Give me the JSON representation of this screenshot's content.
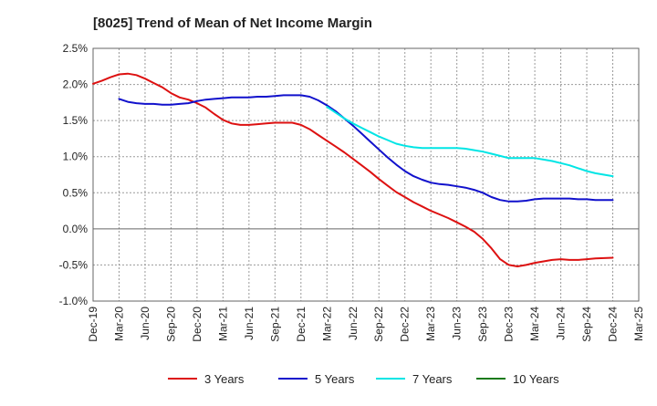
{
  "chart_data": {
    "type": "line",
    "title": "[8025]  Trend of Mean of Net Income Margin",
    "xlabel": "",
    "ylabel": "",
    "x": [
      "Dec-19",
      "Mar-20",
      "Jun-20",
      "Sep-20",
      "Dec-20",
      "Mar-21",
      "Jun-21",
      "Sep-21",
      "Dec-21",
      "Mar-22",
      "Jun-22",
      "Sep-22",
      "Dec-22",
      "Mar-23",
      "Jun-23",
      "Sep-23",
      "Dec-23",
      "Mar-24",
      "Jun-24",
      "Sep-24",
      "Dec-24",
      "Mar-25"
    ],
    "ylim": [
      -1.0,
      2.5
    ],
    "yticks": [
      -1.0,
      -0.5,
      0.0,
      0.5,
      1.0,
      1.5,
      2.0,
      2.5
    ],
    "ytick_labels": [
      "-1.0%",
      "-0.5%",
      "0.0%",
      "0.5%",
      "1.0%",
      "1.5%",
      "2.0%",
      "2.5%"
    ],
    "grid": true,
    "legend_position": "bottom",
    "series": [
      {
        "name": "3 Years",
        "color": "#dd1111",
        "points": [
          [
            "Dec-19",
            2.01
          ],
          [
            "Jan-20",
            2.05
          ],
          [
            "Feb-20",
            2.1
          ],
          [
            "Mar-20",
            2.14
          ],
          [
            "Apr-20",
            2.15
          ],
          [
            "May-20",
            2.13
          ],
          [
            "Jun-20",
            2.08
          ],
          [
            "Jul-20",
            2.02
          ],
          [
            "Aug-20",
            1.96
          ],
          [
            "Sep-20",
            1.88
          ],
          [
            "Oct-20",
            1.82
          ],
          [
            "Nov-20",
            1.79
          ],
          [
            "Dec-20",
            1.74
          ],
          [
            "Jan-21",
            1.68
          ],
          [
            "Feb-21",
            1.59
          ],
          [
            "Mar-21",
            1.51
          ],
          [
            "Apr-21",
            1.46
          ],
          [
            "May-21",
            1.44
          ],
          [
            "Jun-21",
            1.44
          ],
          [
            "Jul-21",
            1.45
          ],
          [
            "Aug-21",
            1.46
          ],
          [
            "Sep-21",
            1.47
          ],
          [
            "Oct-21",
            1.47
          ],
          [
            "Nov-21",
            1.47
          ],
          [
            "Dec-21",
            1.44
          ],
          [
            "Jan-22",
            1.38
          ],
          [
            "Feb-22",
            1.3
          ],
          [
            "Mar-22",
            1.22
          ],
          [
            "Apr-22",
            1.14
          ],
          [
            "May-22",
            1.06
          ],
          [
            "Jun-22",
            0.97
          ],
          [
            "Jul-22",
            0.88
          ],
          [
            "Aug-22",
            0.79
          ],
          [
            "Sep-22",
            0.69
          ],
          [
            "Oct-22",
            0.6
          ],
          [
            "Nov-22",
            0.51
          ],
          [
            "Dec-22",
            0.44
          ],
          [
            "Jan-23",
            0.37
          ],
          [
            "Feb-23",
            0.31
          ],
          [
            "Mar-23",
            0.25
          ],
          [
            "Apr-23",
            0.2
          ],
          [
            "May-23",
            0.15
          ],
          [
            "Jun-23",
            0.09
          ],
          [
            "Jul-23",
            0.03
          ],
          [
            "Aug-23",
            -0.04
          ],
          [
            "Sep-23",
            -0.14
          ],
          [
            "Oct-23",
            -0.27
          ],
          [
            "Nov-23",
            -0.42
          ],
          [
            "Dec-23",
            -0.5
          ],
          [
            "Jan-24",
            -0.52
          ],
          [
            "Feb-24",
            -0.5
          ],
          [
            "Mar-24",
            -0.47
          ],
          [
            "Apr-24",
            -0.45
          ],
          [
            "May-24",
            -0.43
          ],
          [
            "Jun-24",
            -0.42
          ],
          [
            "Jul-24",
            -0.43
          ],
          [
            "Aug-24",
            -0.43
          ],
          [
            "Sep-24",
            -0.42
          ],
          [
            "Oct-24",
            -0.41
          ],
          [
            "Dec-24",
            -0.4
          ]
        ]
      },
      {
        "name": "5 Years",
        "color": "#1111cc",
        "points": [
          [
            "Dec-19",
            null
          ],
          [
            "Jan-20",
            null
          ],
          [
            "Feb-20",
            null
          ],
          [
            "Mar-20",
            1.8
          ],
          [
            "Apr-20",
            1.76
          ],
          [
            "May-20",
            1.74
          ],
          [
            "Jun-20",
            1.73
          ],
          [
            "Jul-20",
            1.73
          ],
          [
            "Aug-20",
            1.72
          ],
          [
            "Sep-20",
            1.72
          ],
          [
            "Oct-20",
            1.73
          ],
          [
            "Nov-20",
            1.74
          ],
          [
            "Dec-20",
            1.77
          ],
          [
            "Jan-21",
            1.79
          ],
          [
            "Feb-21",
            1.8
          ],
          [
            "Mar-21",
            1.81
          ],
          [
            "Apr-21",
            1.82
          ],
          [
            "May-21",
            1.82
          ],
          [
            "Jun-21",
            1.82
          ],
          [
            "Jul-21",
            1.83
          ],
          [
            "Aug-21",
            1.83
          ],
          [
            "Sep-21",
            1.84
          ],
          [
            "Oct-21",
            1.85
          ],
          [
            "Nov-21",
            1.85
          ],
          [
            "Dec-21",
            1.85
          ],
          [
            "Jan-22",
            1.83
          ],
          [
            "Feb-22",
            1.78
          ],
          [
            "Mar-22",
            1.71
          ],
          [
            "Apr-22",
            1.63
          ],
          [
            "May-22",
            1.53
          ],
          [
            "Jun-22",
            1.43
          ],
          [
            "Jul-22",
            1.32
          ],
          [
            "Aug-22",
            1.21
          ],
          [
            "Sep-22",
            1.1
          ],
          [
            "Oct-22",
            0.99
          ],
          [
            "Nov-22",
            0.89
          ],
          [
            "Dec-22",
            0.8
          ],
          [
            "Jan-23",
            0.73
          ],
          [
            "Feb-23",
            0.68
          ],
          [
            "Mar-23",
            0.64
          ],
          [
            "Apr-23",
            0.62
          ],
          [
            "May-23",
            0.61
          ],
          [
            "Jun-23",
            0.59
          ],
          [
            "Jul-23",
            0.57
          ],
          [
            "Aug-23",
            0.54
          ],
          [
            "Sep-23",
            0.5
          ],
          [
            "Oct-23",
            0.44
          ],
          [
            "Nov-23",
            0.4
          ],
          [
            "Dec-23",
            0.38
          ],
          [
            "Jan-24",
            0.38
          ],
          [
            "Feb-24",
            0.39
          ],
          [
            "Mar-24",
            0.41
          ],
          [
            "Apr-24",
            0.42
          ],
          [
            "May-24",
            0.42
          ],
          [
            "Jun-24",
            0.42
          ],
          [
            "Jul-24",
            0.42
          ],
          [
            "Aug-24",
            0.41
          ],
          [
            "Sep-24",
            0.41
          ],
          [
            "Oct-24",
            0.4
          ],
          [
            "Dec-24",
            0.4
          ]
        ]
      },
      {
        "name": "7 Years",
        "color": "#00e5e5",
        "points": [
          [
            "Mar-22",
            1.69
          ],
          [
            "Apr-22",
            1.61
          ],
          [
            "May-22",
            1.53
          ],
          [
            "Jun-22",
            1.46
          ],
          [
            "Jul-22",
            1.4
          ],
          [
            "Aug-22",
            1.34
          ],
          [
            "Sep-22",
            1.28
          ],
          [
            "Oct-22",
            1.23
          ],
          [
            "Nov-22",
            1.18
          ],
          [
            "Dec-22",
            1.15
          ],
          [
            "Jan-23",
            1.13
          ],
          [
            "Feb-23",
            1.12
          ],
          [
            "Mar-23",
            1.12
          ],
          [
            "Apr-23",
            1.12
          ],
          [
            "May-23",
            1.12
          ],
          [
            "Jun-23",
            1.12
          ],
          [
            "Jul-23",
            1.11
          ],
          [
            "Aug-23",
            1.09
          ],
          [
            "Sep-23",
            1.07
          ],
          [
            "Oct-23",
            1.04
          ],
          [
            "Nov-23",
            1.01
          ],
          [
            "Dec-23",
            0.98
          ],
          [
            "Jan-24",
            0.98
          ],
          [
            "Feb-24",
            0.98
          ],
          [
            "Mar-24",
            0.98
          ],
          [
            "Apr-24",
            0.96
          ],
          [
            "May-24",
            0.94
          ],
          [
            "Jun-24",
            0.91
          ],
          [
            "Jul-24",
            0.88
          ],
          [
            "Aug-24",
            0.84
          ],
          [
            "Sep-24",
            0.8
          ],
          [
            "Oct-24",
            0.77
          ],
          [
            "Dec-24",
            0.73
          ]
        ]
      },
      {
        "name": "10 Years",
        "color": "#1a7a1a",
        "points": []
      }
    ]
  }
}
